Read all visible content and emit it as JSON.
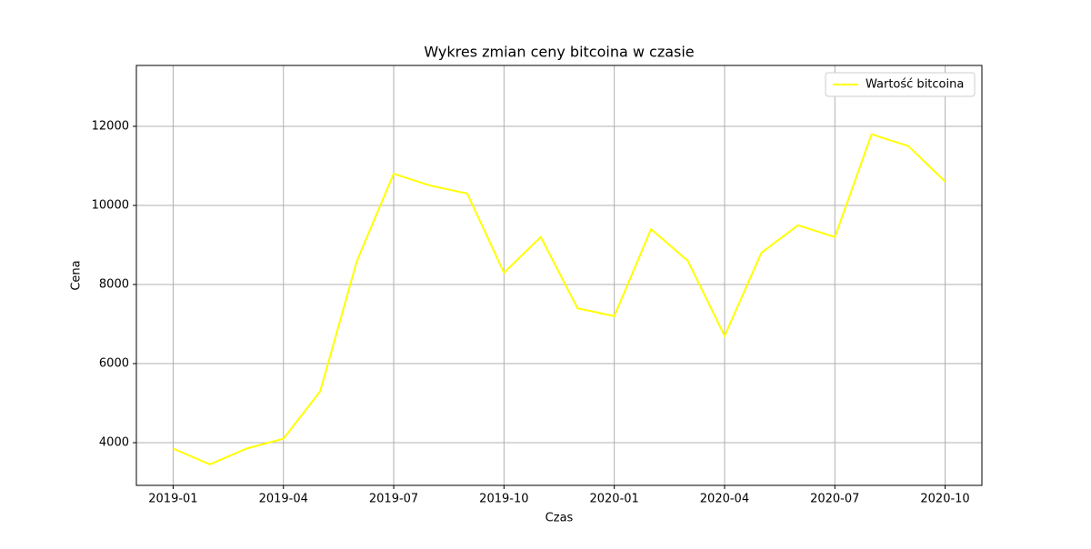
{
  "chart_data": {
    "type": "line",
    "title": "Wykres zmian ceny bitcoina w czasie",
    "x_label": "Czas",
    "y_label": "Cena",
    "x": [
      "2019-01",
      "2019-02",
      "2019-03",
      "2019-04",
      "2019-05",
      "2019-06",
      "2019-07",
      "2019-08",
      "2019-09",
      "2019-10",
      "2019-11",
      "2019-12",
      "2020-01",
      "2020-02",
      "2020-03",
      "2020-04",
      "2020-05",
      "2020-06",
      "2020-07",
      "2020-08",
      "2020-09",
      "2020-10"
    ],
    "series": [
      {
        "name": "Wartość bitcoina",
        "color": "#ffff00",
        "values": [
          3850,
          3450,
          3850,
          4100,
          5300,
          8600,
          10800,
          10500,
          10300,
          8300,
          9200,
          7400,
          7200,
          9400,
          8600,
          6700,
          8800,
          9500,
          9200,
          11800,
          11500,
          10600
        ]
      }
    ],
    "xlim": [
      "2018-12",
      "2020-11"
    ],
    "xticks": [
      "2019-01",
      "2019-04",
      "2019-07",
      "2019-10",
      "2020-01",
      "2020-04",
      "2020-07",
      "2020-10"
    ],
    "ylim": [
      2920,
      13540
    ],
    "yticks": [
      4000,
      6000,
      8000,
      10000,
      12000
    ],
    "grid": true,
    "legend": "upper right"
  }
}
